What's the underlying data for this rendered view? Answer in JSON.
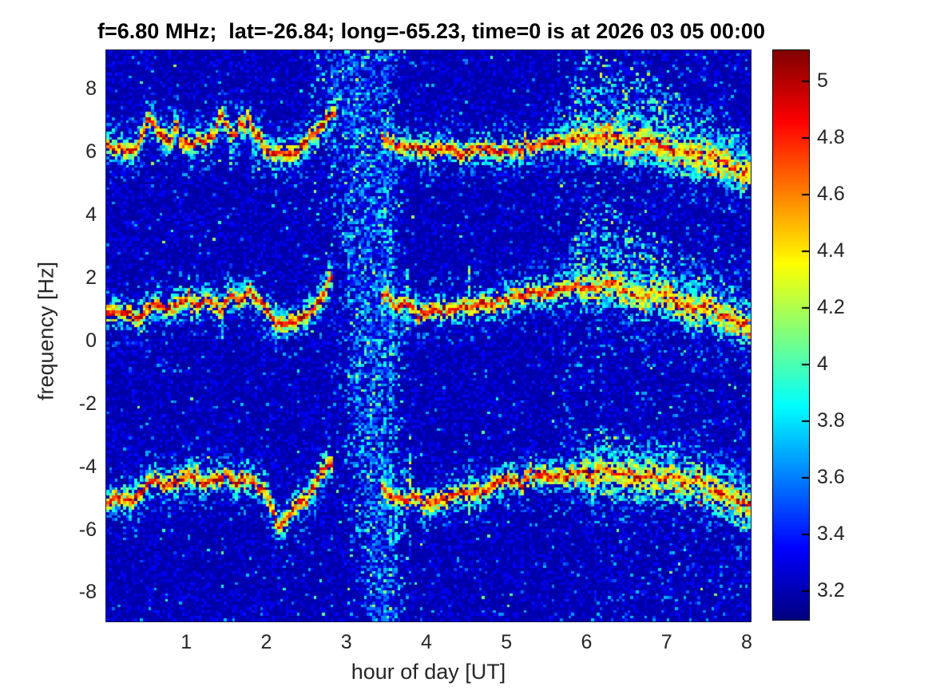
{
  "figure": {
    "title": "f=6.80 MHz;  lat=-26.84; long=-65.23, time=0 is at 2026 03 05 00:00",
    "xlabel": "hour of day [UT]",
    "ylabel": "frequency [Hz]",
    "text_color": "#262626",
    "title_color": "#000000",
    "background_color": "#ffffff"
  },
  "chart_data": {
    "type": "heatmap",
    "title": "f=6.80 MHz;  lat=-26.84; long=-65.23, time=0 is at 2026 03 05 00:00",
    "xlabel": "hour of day [UT]",
    "ylabel": "frequency [Hz]",
    "x_range": [
      0,
      8.05
    ],
    "y_range": [
      -8.9,
      9.25
    ],
    "x_ticks": [
      "1",
      "2",
      "3",
      "4",
      "5",
      "6",
      "7",
      "8"
    ],
    "y_ticks": [
      "8",
      "6",
      "4",
      "2",
      "0",
      "-2",
      "-4",
      "-6",
      "-8"
    ],
    "grid": false,
    "colormap": "jet",
    "colorbar": {
      "min": 3.1,
      "max": 5.11,
      "ticks": [
        "5",
        "4.8",
        "4.6",
        "4.4",
        "4.2",
        "4",
        "3.8",
        "3.6",
        "3.4",
        "3.2"
      ],
      "position": "right"
    },
    "background_level": 3.18,
    "traces": [
      {
        "name": "upper-doppler-trace",
        "gap": [
          2.86,
          3.44
        ],
        "points": [
          [
            0,
            6.05
          ],
          [
            0.1,
            6.2
          ],
          [
            0.2,
            6.15
          ],
          [
            0.3,
            5.95
          ],
          [
            0.42,
            6.3
          ],
          [
            0.5,
            6.85
          ],
          [
            0.57,
            7.0
          ],
          [
            0.65,
            6.6
          ],
          [
            0.72,
            6.55
          ],
          [
            0.8,
            6.3
          ],
          [
            0.88,
            6.9
          ],
          [
            0.95,
            6.3
          ],
          [
            1.05,
            6.2
          ],
          [
            1.15,
            6.4
          ],
          [
            1.25,
            6.3
          ],
          [
            1.35,
            6.7
          ],
          [
            1.45,
            7.2
          ],
          [
            1.52,
            6.6
          ],
          [
            1.6,
            6.5
          ],
          [
            1.68,
            7.0
          ],
          [
            1.78,
            7.1
          ],
          [
            1.88,
            6.6
          ],
          [
            2.0,
            6.1
          ],
          [
            2.1,
            5.95
          ],
          [
            2.2,
            5.9
          ],
          [
            2.35,
            6.0
          ],
          [
            2.5,
            6.3
          ],
          [
            2.65,
            6.75
          ],
          [
            2.78,
            7.1
          ],
          [
            2.85,
            7.15
          ],
          [
            3.45,
            6.5
          ],
          [
            3.55,
            6.3
          ],
          [
            3.65,
            6.15
          ],
          [
            3.8,
            6.2
          ],
          [
            3.95,
            6.05
          ],
          [
            4.1,
            6.1
          ],
          [
            4.25,
            6.15
          ],
          [
            4.4,
            5.95
          ],
          [
            4.55,
            6.05
          ],
          [
            4.7,
            6.1
          ],
          [
            4.85,
            6.0
          ],
          [
            5.0,
            6.1
          ],
          [
            5.15,
            6.05
          ],
          [
            5.3,
            6.2
          ],
          [
            5.45,
            6.3
          ],
          [
            5.6,
            6.35
          ],
          [
            5.75,
            6.4
          ],
          [
            5.9,
            6.55
          ],
          [
            6.05,
            6.35
          ],
          [
            6.2,
            6.45
          ],
          [
            6.35,
            6.55
          ],
          [
            6.5,
            6.3
          ],
          [
            6.65,
            6.4
          ],
          [
            6.8,
            6.35
          ],
          [
            6.95,
            6.2
          ],
          [
            7.1,
            6.05
          ],
          [
            7.25,
            5.95
          ],
          [
            7.4,
            5.85
          ],
          [
            7.55,
            5.9
          ],
          [
            7.7,
            5.7
          ],
          [
            7.85,
            5.55
          ],
          [
            8.05,
            5.35
          ]
        ]
      },
      {
        "name": "middle-doppler-trace",
        "gap": [
          2.85,
          3.44
        ],
        "points": [
          [
            0,
            0.8
          ],
          [
            0.12,
            0.95
          ],
          [
            0.25,
            0.85
          ],
          [
            0.35,
            0.7
          ],
          [
            0.45,
            0.8
          ],
          [
            0.55,
            1.1
          ],
          [
            0.65,
            1.25
          ],
          [
            0.75,
            1.0
          ],
          [
            0.85,
            1.05
          ],
          [
            0.95,
            1.3
          ],
          [
            1.05,
            1.2
          ],
          [
            1.15,
            1.15
          ],
          [
            1.25,
            1.3
          ],
          [
            1.35,
            1.15
          ],
          [
            1.45,
            0.95
          ],
          [
            1.55,
            1.45
          ],
          [
            1.62,
            1.3
          ],
          [
            1.7,
            1.35
          ],
          [
            1.8,
            1.55
          ],
          [
            1.9,
            1.35
          ],
          [
            2.0,
            1.1
          ],
          [
            2.1,
            0.6
          ],
          [
            2.2,
            0.5
          ],
          [
            2.35,
            0.6
          ],
          [
            2.5,
            0.8
          ],
          [
            2.65,
            1.2
          ],
          [
            2.78,
            1.9
          ],
          [
            2.84,
            2.0
          ],
          [
            3.45,
            1.35
          ],
          [
            3.52,
            1.5
          ],
          [
            3.6,
            1.0
          ],
          [
            3.7,
            1.15
          ],
          [
            3.8,
            1.1
          ],
          [
            3.9,
            0.85
          ],
          [
            4.0,
            0.9
          ],
          [
            4.15,
            0.95
          ],
          [
            4.3,
            1.0
          ],
          [
            4.45,
            1.05
          ],
          [
            4.6,
            1.1
          ],
          [
            4.75,
            1.2
          ],
          [
            4.9,
            1.35
          ],
          [
            5.05,
            1.45
          ],
          [
            5.2,
            1.5
          ],
          [
            5.35,
            1.55
          ],
          [
            5.5,
            1.5
          ],
          [
            5.65,
            1.6
          ],
          [
            5.8,
            1.75
          ],
          [
            5.95,
            1.8
          ],
          [
            6.1,
            1.7
          ],
          [
            6.25,
            1.9
          ],
          [
            6.4,
            1.75
          ],
          [
            6.55,
            1.55
          ],
          [
            6.7,
            1.35
          ],
          [
            6.85,
            1.6
          ],
          [
            7.0,
            1.5
          ],
          [
            7.15,
            1.2
          ],
          [
            7.3,
            1.0
          ],
          [
            7.45,
            1.1
          ],
          [
            7.6,
            0.95
          ],
          [
            7.75,
            0.8
          ],
          [
            7.9,
            0.6
          ],
          [
            8.05,
            0.45
          ]
        ]
      },
      {
        "name": "lower-doppler-trace",
        "gap": [
          2.82,
          3.44
        ],
        "points": [
          [
            0,
            -5.2
          ],
          [
            0.12,
            -4.9
          ],
          [
            0.22,
            -5.1
          ],
          [
            0.35,
            -5.0
          ],
          [
            0.5,
            -4.6
          ],
          [
            0.62,
            -4.35
          ],
          [
            0.75,
            -4.6
          ],
          [
            0.9,
            -4.5
          ],
          [
            1.05,
            -4.25
          ],
          [
            1.2,
            -4.55
          ],
          [
            1.35,
            -4.4
          ],
          [
            1.5,
            -4.25
          ],
          [
            1.65,
            -4.5
          ],
          [
            1.8,
            -4.35
          ],
          [
            1.95,
            -4.6
          ],
          [
            2.05,
            -5.2
          ],
          [
            2.15,
            -5.9
          ],
          [
            2.25,
            -5.6
          ],
          [
            2.4,
            -5.1
          ],
          [
            2.55,
            -4.8
          ],
          [
            2.7,
            -4.2
          ],
          [
            2.8,
            -3.9
          ],
          [
            3.45,
            -4.6
          ],
          [
            3.55,
            -4.9
          ],
          [
            3.7,
            -5.05
          ],
          [
            3.85,
            -4.9
          ],
          [
            4.0,
            -5.25
          ],
          [
            4.1,
            -5.1
          ],
          [
            4.25,
            -5.0
          ],
          [
            4.4,
            -4.85
          ],
          [
            4.55,
            -4.75
          ],
          [
            4.7,
            -4.8
          ],
          [
            4.85,
            -4.55
          ],
          [
            5.0,
            -4.35
          ],
          [
            5.15,
            -4.45
          ],
          [
            5.3,
            -4.35
          ],
          [
            5.45,
            -4.25
          ],
          [
            5.6,
            -4.35
          ],
          [
            5.75,
            -4.3
          ],
          [
            5.9,
            -4.15
          ],
          [
            6.05,
            -4.2
          ],
          [
            6.2,
            -4.0
          ],
          [
            6.35,
            -4.3
          ],
          [
            6.5,
            -4.1
          ],
          [
            6.65,
            -4.35
          ],
          [
            6.8,
            -4.2
          ],
          [
            6.95,
            -4.4
          ],
          [
            7.1,
            -4.3
          ],
          [
            7.25,
            -4.5
          ],
          [
            7.4,
            -4.4
          ],
          [
            7.55,
            -4.65
          ],
          [
            7.7,
            -4.8
          ],
          [
            7.85,
            -5.0
          ],
          [
            8.05,
            -5.3
          ]
        ]
      }
    ],
    "interference_band": {
      "center_top": 3.08,
      "center_bottom": 3.44,
      "sigma_top": 0.25,
      "sigma_bottom": 0.15,
      "arm_center": 3.52,
      "arm_sigma": 0.09
    },
    "spread_fans": [
      {
        "trace": 0,
        "h_start": 5.62,
        "h_peak": 5.95,
        "rise_above_peak": 2.9,
        "rise_above_end": 1.0,
        "drop_below": 0.7,
        "density": 0.32
      },
      {
        "trace": 1,
        "h_start": 5.62,
        "h_peak": 5.95,
        "rise_above_peak": 2.75,
        "rise_above_end": 0.9,
        "drop_below": 0.6,
        "density": 0.3
      },
      {
        "trace": 2,
        "h_start": 5.7,
        "h_peak": 6.05,
        "rise_above_peak": 1.35,
        "rise_above_end": 1.0,
        "drop_below": 0.85,
        "density": 0.28
      }
    ],
    "vertical_spikes": [
      {
        "h": 3.57,
        "f1": -6.6,
        "f2": 3.6,
        "p": 0.45,
        "v0": 3.5,
        "v1": 4.1
      },
      {
        "h": 3.78,
        "f1": 0.2,
        "f2": 2.3,
        "p": 0.6,
        "v0": 3.6,
        "v1": 4.3
      },
      {
        "h": 3.81,
        "f1": -5.0,
        "f2": -2.9,
        "p": 0.55,
        "v0": 3.7,
        "v1": 4.5
      },
      {
        "h": 4.52,
        "f1": 0.6,
        "f2": 2.5,
        "p": 0.6,
        "v0": 3.6,
        "v1": 4.4
      },
      {
        "h": 4.54,
        "f1": -5.7,
        "f2": -4.1,
        "p": 0.5,
        "v0": 3.6,
        "v1": 4.2
      },
      {
        "h": 5.02,
        "f1": -5.9,
        "f2": -4.3,
        "p": 0.45,
        "v0": 3.5,
        "v1": 4.1
      },
      {
        "h": 5.66,
        "f1": 0.8,
        "f2": 9.2,
        "p": 0.28,
        "v0": 3.4,
        "v1": 3.9
      }
    ],
    "down_streaks": [
      {
        "trace": 0,
        "h": 0.35,
        "depth": 0.9
      },
      {
        "trace": 0,
        "h": 1.05,
        "depth": 0.8
      },
      {
        "trace": 0,
        "h": 1.55,
        "depth": 1.1
      },
      {
        "trace": 0,
        "h": 1.83,
        "depth": 1.5
      },
      {
        "trace": 0,
        "h": 2.12,
        "depth": 1.4
      },
      {
        "trace": 1,
        "h": 0.5,
        "depth": 0.7
      },
      {
        "trace": 1,
        "h": 1.45,
        "depth": 0.9
      },
      {
        "trace": 1,
        "h": 2.1,
        "depth": 1.0
      },
      {
        "trace": 1,
        "h": 3.6,
        "depth": 0.8
      },
      {
        "trace": 2,
        "h": 0.3,
        "depth": 0.7
      },
      {
        "trace": 2,
        "h": 1.0,
        "depth": 0.6
      },
      {
        "trace": 2,
        "h": 2.2,
        "depth": 0.9
      },
      {
        "trace": 2,
        "h": 2.62,
        "depth": 1.2
      },
      {
        "trace": 2,
        "h": 3.62,
        "depth": 1.5
      },
      {
        "trace": 2,
        "h": 4.05,
        "depth": 0.7
      }
    ]
  }
}
